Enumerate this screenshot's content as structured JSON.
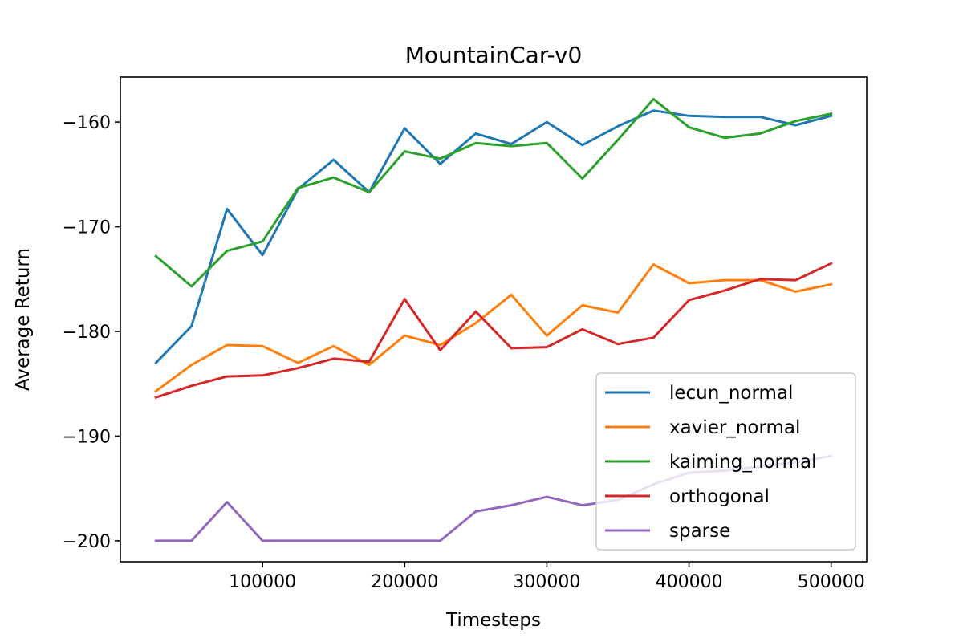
{
  "chart_data": {
    "type": "line",
    "title": "MountainCar-v0",
    "xlabel": "Timesteps",
    "ylabel": "Average Return",
    "xlim": [
      0,
      525000
    ],
    "ylim": [
      -202,
      -155.7
    ],
    "xticks": [
      100000,
      200000,
      300000,
      400000,
      500000
    ],
    "xtick_labels": [
      "100000",
      "200000",
      "300000",
      "400000",
      "500000"
    ],
    "yticks": [
      -200,
      -190,
      -180,
      -170,
      -160
    ],
    "ytick_labels": [
      "−200",
      "−190",
      "−180",
      "−170",
      "−160"
    ],
    "grid": false,
    "legend_position": "lower-right",
    "x": [
      25000,
      50000,
      75000,
      100000,
      125000,
      150000,
      175000,
      200000,
      225000,
      250000,
      275000,
      300000,
      325000,
      350000,
      375000,
      400000,
      425000,
      450000,
      475000,
      500000
    ],
    "series": [
      {
        "name": "lecun_normal",
        "color": "#1f77b4",
        "values": [
          -183,
          -179.5,
          -168.3,
          -172.7,
          -166.4,
          -163.6,
          -166.7,
          -160.6,
          -164,
          -161.1,
          -162.1,
          -160,
          -162.2,
          -160.4,
          -158.9,
          -159.4,
          -159.5,
          -159.5,
          -160.3,
          -159.4
        ]
      },
      {
        "name": "xavier_normal",
        "color": "#ff7f0e",
        "values": [
          -185.7,
          -183.2,
          -181.3,
          -181.4,
          -183,
          -181.4,
          -183.2,
          -180.4,
          -181.3,
          -179.2,
          -176.5,
          -180.4,
          -177.5,
          -178.2,
          -173.6,
          -175.4,
          -175.1,
          -175.1,
          -176.2,
          -175.5
        ]
      },
      {
        "name": "kaiming_normal",
        "color": "#2ca02c",
        "values": [
          -172.8,
          -175.7,
          -172.3,
          -171.4,
          -166.3,
          -165.3,
          -166.7,
          -162.8,
          -163.5,
          -162,
          -162.3,
          -162,
          -165.4,
          -161.7,
          -157.8,
          -160.5,
          -161.5,
          -161.1,
          -159.9,
          -159.2
        ]
      },
      {
        "name": "orthogonal",
        "color": "#d62728",
        "values": [
          -186.3,
          -185.2,
          -184.3,
          -184.2,
          -183.5,
          -182.6,
          -182.9,
          -176.9,
          -181.8,
          -178.1,
          -181.6,
          -181.5,
          -179.8,
          -181.2,
          -180.6,
          -177,
          -176.1,
          -175,
          -175.1,
          -173.5
        ]
      },
      {
        "name": "sparse",
        "color": "#9467bd",
        "values": [
          -200,
          -200,
          -196.3,
          -200,
          -200,
          -200,
          -200,
          -200,
          -200,
          -197.2,
          -196.6,
          -195.8,
          -196.6,
          -196.1,
          -194.6,
          -193.5,
          -193.3,
          -192.9,
          -192.5,
          -191.9
        ]
      }
    ]
  }
}
